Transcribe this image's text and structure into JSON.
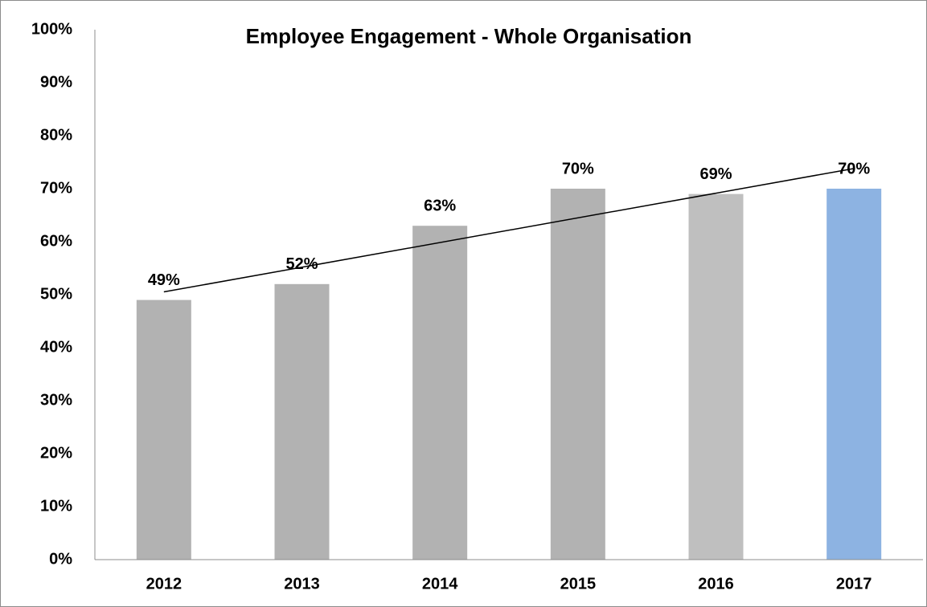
{
  "chart_data": {
    "type": "bar",
    "title": "Employee Engagement - Whole Organisation",
    "categories": [
      "2012",
      "2013",
      "2014",
      "2015",
      "2016",
      "2017"
    ],
    "values": [
      49,
      52,
      63,
      70,
      69,
      70
    ],
    "value_labels": [
      "49%",
      "52%",
      "63%",
      "70%",
      "69%",
      "70%"
    ],
    "colors": [
      "#b2b2b2",
      "#b2b2b2",
      "#b2b2b2",
      "#b2b2b2",
      "#bfbfbf",
      "#8db3e2"
    ],
    "ylim": [
      0,
      100
    ],
    "yticks": [
      {
        "value": 0,
        "label": "0%"
      },
      {
        "value": 10,
        "label": "10%"
      },
      {
        "value": 20,
        "label": "20%"
      },
      {
        "value": 30,
        "label": "30%"
      },
      {
        "value": 40,
        "label": "40%"
      },
      {
        "value": 50,
        "label": "50%"
      },
      {
        "value": 60,
        "label": "60%"
      },
      {
        "value": 70,
        "label": "70%"
      },
      {
        "value": 80,
        "label": "80%"
      },
      {
        "value": 90,
        "label": "90%"
      },
      {
        "value": 100,
        "label": "100%"
      }
    ],
    "grid": false,
    "trendline": true
  }
}
